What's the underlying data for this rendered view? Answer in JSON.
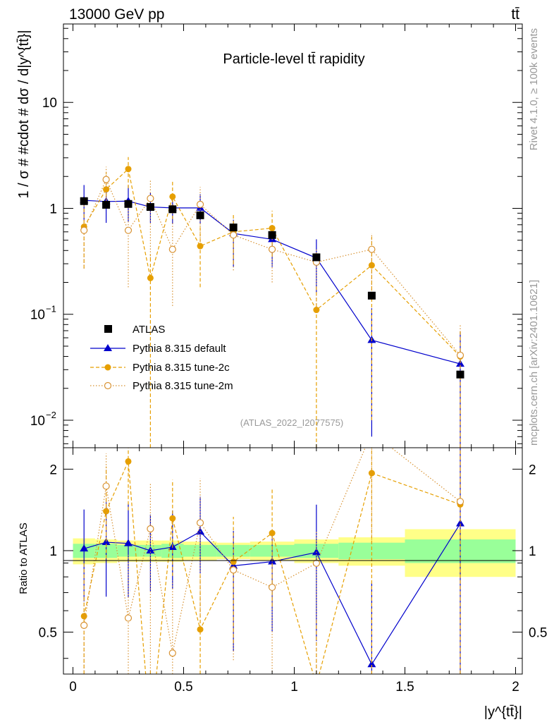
{
  "header": {
    "left_title": "13000 GeV pp",
    "right_title": "tt̄"
  },
  "chart_data": {
    "type": "scatter",
    "title": "Particle-level tt̄ rapidity",
    "ylabel": "1 / σ # #cdot # dσ / d|y^{tt̄}|",
    "xlabel": "|y^{tt̄}|",
    "ratio_ylabel": "Ratio to ATLAS",
    "watermark": "(ATLAS_2022_I2077575)",
    "side_label_top": "Rivet 4.1.0, ≥ 100k events",
    "side_label_bottom": "mcplots.cern.ch [arXiv:2401.10621]",
    "xlim": [
      -0.05,
      2.05
    ],
    "ylim_main": [
      0.0055,
      55
    ],
    "ylim_ratio": [
      0.35,
      2.4
    ],
    "x_ticks": [
      0,
      0.5,
      1,
      1.5,
      2
    ],
    "x_tick_labels": [
      "0",
      "0.5",
      "1",
      "1.5",
      "2"
    ],
    "main_y_ticks": [
      0.01,
      0.1,
      1,
      10
    ],
    "main_y_tick_labels": [
      "10",
      "10",
      "1",
      "10"
    ],
    "main_y_tick_exponents": [
      "−2",
      "−1",
      "",
      ""
    ],
    "ratio_y_ticks": [
      0.5,
      1,
      2
    ],
    "ratio_y_tick_labels": [
      "0.5",
      "1",
      "2"
    ],
    "bins": [
      {
        "lo": 0.0,
        "hi": 0.1
      },
      {
        "lo": 0.1,
        "hi": 0.2
      },
      {
        "lo": 0.2,
        "hi": 0.3
      },
      {
        "lo": 0.3,
        "hi": 0.4
      },
      {
        "lo": 0.4,
        "hi": 0.5
      },
      {
        "lo": 0.5,
        "hi": 0.65
      },
      {
        "lo": 0.65,
        "hi": 0.8
      },
      {
        "lo": 0.8,
        "hi": 1.0
      },
      {
        "lo": 1.0,
        "hi": 1.2
      },
      {
        "lo": 1.2,
        "hi": 1.5
      },
      {
        "lo": 1.5,
        "hi": 2.0
      }
    ],
    "x": [
      0.05,
      0.15,
      0.25,
      0.35,
      0.45,
      0.575,
      0.725,
      0.9,
      1.1,
      1.35,
      1.75
    ],
    "band_inner": [
      0.06,
      0.06,
      0.05,
      0.05,
      0.06,
      0.05,
      0.05,
      0.05,
      0.06,
      0.07,
      0.1
    ],
    "band_outer": [
      0.11,
      0.1,
      0.09,
      0.09,
      0.09,
      0.08,
      0.07,
      0.08,
      0.1,
      0.12,
      0.2
    ],
    "series": [
      {
        "name": "ATLAS",
        "style": "data",
        "color": "#000000",
        "values": [
          1.17,
          1.08,
          1.1,
          1.03,
          0.98,
          0.86,
          0.66,
          0.56,
          0.345,
          0.15,
          0.027
        ],
        "err_lo": [
          0.0,
          0.0,
          0.0,
          0.0,
          0.0,
          0.0,
          0.0,
          0.0,
          0.0,
          0.0,
          0.0
        ],
        "err_hi": [
          0.0,
          0.0,
          0.0,
          0.0,
          0.0,
          0.0,
          0.0,
          0.0,
          0.0,
          0.0,
          0.0
        ]
      },
      {
        "name": "Pythia 8.315 default",
        "style": "default",
        "color": "#0000cc",
        "values": [
          1.19,
          1.16,
          1.17,
          1.03,
          1.01,
          1.01,
          0.58,
          0.51,
          0.34,
          0.057,
          0.034
        ],
        "err_lo": [
          0.43,
          0.43,
          0.43,
          0.3,
          0.3,
          0.3,
          0.3,
          0.23,
          0.18,
          0.05,
          0.032
        ],
        "err_hi": [
          0.47,
          0.47,
          0.47,
          0.37,
          0.37,
          0.35,
          0.2,
          0.16,
          0.17,
          0.057,
          0.034
        ]
      },
      {
        "name": "Pythia 8.315 tune-2c",
        "style": "tune2c",
        "color": "#e69f00",
        "values": [
          0.67,
          1.51,
          2.35,
          0.22,
          1.29,
          0.44,
          0.6,
          0.65,
          0.11,
          0.29,
          0.04
        ],
        "err_lo": [
          0.4,
          0.5,
          0.8,
          0.215,
          0.5,
          0.26,
          0.3,
          0.3,
          0.105,
          0.28,
          0.039
        ],
        "err_hi": [
          0.4,
          0.7,
          0.7,
          0.15,
          0.5,
          0.26,
          0.28,
          0.3,
          0.08,
          0.25,
          0.03
        ]
      },
      {
        "name": "Pythia 8.315 tune-2m",
        "style": "tune2m",
        "color": "#d89232",
        "values": [
          0.62,
          1.87,
          0.62,
          1.24,
          0.41,
          1.09,
          0.56,
          0.41,
          0.31,
          0.41,
          0.041
        ],
        "err_lo": [
          0.35,
          0.7,
          0.44,
          0.9,
          0.29,
          0.6,
          0.3,
          0.21,
          0.2,
          0.25,
          0.039
        ],
        "err_hi": [
          0.35,
          0.6,
          0.44,
          0.6,
          0.35,
          0.5,
          0.2,
          0.24,
          0.1,
          0.17,
          0.04
        ]
      }
    ]
  }
}
